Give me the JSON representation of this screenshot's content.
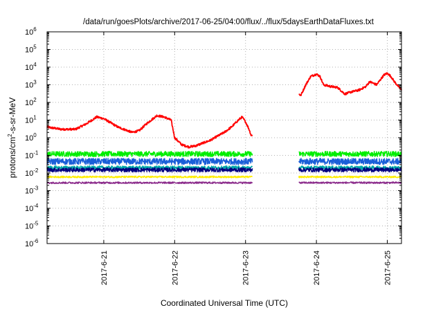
{
  "chart_data": {
    "type": "line",
    "title": "/data/run/goesPlots/archive/2017-06-25/04:00/flux/../flux/5daysEarthDataFluxes.txt",
    "xlabel": "Coordinated Universal Time (UTC)",
    "ylabel": "protons/cm²-s-sr-MeV",
    "ylabel_parts": {
      "pre": "protons/cm",
      "sup": "2",
      "post": "-s-sr-MeV"
    },
    "yscale": "log",
    "ylim": [
      1e-06,
      1000000
    ],
    "xlim_days": [
      20.2,
      25.2
    ],
    "x_ticks": [
      {
        "day": 21,
        "label": "2017-6-21"
      },
      {
        "day": 22,
        "label": "2017-6-22"
      },
      {
        "day": 23,
        "label": "2017-6-23"
      },
      {
        "day": 24,
        "label": "2017-6-24"
      },
      {
        "day": 25,
        "label": "2017-6-25"
      }
    ],
    "y_ticks": [
      {
        "exp": -6,
        "label": "10",
        "sup": "-6"
      },
      {
        "exp": -5,
        "label": "10",
        "sup": "-5"
      },
      {
        "exp": -4,
        "label": "10",
        "sup": "-4"
      },
      {
        "exp": -3,
        "label": "10",
        "sup": "-3"
      },
      {
        "exp": -2,
        "label": "10",
        "sup": "-2"
      },
      {
        "exp": -1,
        "label": "10",
        "sup": "-1"
      },
      {
        "exp": 0,
        "label": "10",
        "sup": "0"
      },
      {
        "exp": 1,
        "label": "10",
        "sup": "1"
      },
      {
        "exp": 2,
        "label": "10",
        "sup": "2"
      },
      {
        "exp": 3,
        "label": "10",
        "sup": "3"
      },
      {
        "exp": 4,
        "label": "10",
        "sup": "4"
      },
      {
        "exp": 5,
        "label": "10",
        "sup": "5"
      },
      {
        "exp": 6,
        "label": "10",
        "sup": "6"
      }
    ],
    "grid": true,
    "legend": "none",
    "data_gaps": [
      [
        23.1,
        23.75
      ]
    ],
    "series": [
      {
        "color": "#ff0000",
        "noise_exp": 0.06,
        "x": [
          20.2,
          20.4,
          20.6,
          20.75,
          20.9,
          21.0,
          21.2,
          21.4,
          21.5,
          21.6,
          21.75,
          21.85,
          21.95,
          22.0,
          22.1,
          22.2,
          22.3,
          22.4,
          22.5,
          22.6,
          22.7,
          22.8,
          22.9,
          22.95,
          23.0,
          23.05,
          23.08,
          23.75,
          23.78,
          23.85,
          23.92,
          24.0,
          24.05,
          24.1,
          24.2,
          24.3,
          24.4,
          24.5,
          24.6,
          24.7,
          24.75,
          24.85,
          24.95,
          25.0,
          25.05,
          25.1,
          25.2
        ],
        "y": [
          4,
          3,
          3,
          6,
          15,
          12,
          4,
          2,
          2.5,
          6,
          18,
          15,
          10,
          1,
          0.4,
          0.3,
          0.35,
          0.5,
          0.7,
          1.2,
          2,
          4,
          10,
          15,
          8,
          3,
          1.3,
          300,
          250,
          1000,
          3000,
          4000,
          3000,
          1000,
          800,
          700,
          300,
          400,
          500,
          800,
          1500,
          1000,
          3500,
          4500,
          3000,
          1500,
          500
        ]
      },
      {
        "color": "#00ee00",
        "noise_exp": 0.15,
        "x": [
          20.2,
          21.0,
          22.0,
          23.08,
          23.75,
          24.5,
          25.2
        ],
        "y": [
          0.12,
          0.12,
          0.12,
          0.12,
          0.12,
          0.12,
          0.12
        ]
      },
      {
        "color": "#1a5fd8",
        "noise_exp": 0.18,
        "x": [
          20.2,
          21.0,
          22.0,
          23.08,
          23.75,
          24.5,
          25.2
        ],
        "y": [
          0.045,
          0.045,
          0.045,
          0.045,
          0.045,
          0.045,
          0.045
        ]
      },
      {
        "color": "#00a8a8",
        "noise_exp": 0.1,
        "x": [
          20.2,
          21.0,
          22.0,
          23.08,
          23.75,
          24.5,
          25.2
        ],
        "y": [
          0.02,
          0.02,
          0.02,
          0.02,
          0.02,
          0.02,
          0.02
        ]
      },
      {
        "color": "#000080",
        "noise_exp": 0.12,
        "x": [
          20.2,
          21.0,
          22.0,
          23.08,
          23.75,
          24.5,
          25.2
        ],
        "y": [
          0.015,
          0.015,
          0.015,
          0.015,
          0.015,
          0.015,
          0.015
        ]
      },
      {
        "color": "#ffee00",
        "noise_exp": 0.05,
        "x": [
          20.2,
          21.0,
          22.0,
          23.08,
          23.75,
          24.5,
          25.2
        ],
        "y": [
          0.006,
          0.006,
          0.006,
          0.006,
          0.006,
          0.006,
          0.006
        ]
      },
      {
        "color": "#8b2b8b",
        "noise_exp": 0.05,
        "x": [
          20.2,
          21.0,
          22.0,
          23.08,
          23.75,
          24.5,
          25.2
        ],
        "y": [
          0.0028,
          0.0028,
          0.0028,
          0.0028,
          0.0028,
          0.0028,
          0.0028
        ]
      }
    ]
  }
}
